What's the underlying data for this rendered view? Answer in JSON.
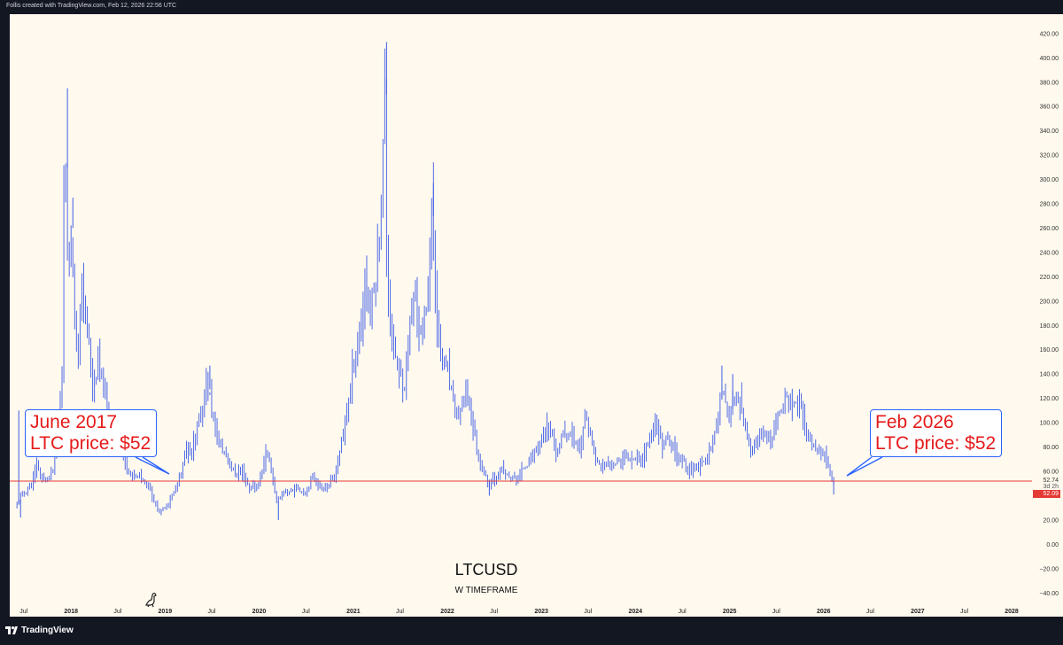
{
  "header": {
    "caption": "Follis created with TradingView.com, Feb 12, 2026 22:56 UTC"
  },
  "footer": {
    "brand": "TradingView"
  },
  "chart_data": {
    "type": "candlestick",
    "title": "LTCUSD",
    "subtitle": "W TIMEFRAME",
    "timeframe": "W",
    "ylim": [
      -50,
      425
    ],
    "y_ticks": [
      "420.00",
      "400.00",
      "380.00",
      "360.00",
      "340.00",
      "320.00",
      "300.00",
      "280.00",
      "260.00",
      "240.00",
      "220.00",
      "200.00",
      "180.00",
      "160.00",
      "140.00",
      "120.00",
      "100.00",
      "80.00",
      "60.00",
      "40.00",
      "20.00",
      "0.00",
      "−20.00",
      "−40.00"
    ],
    "x_ticks": [
      "Jul",
      "2018",
      "Jul",
      "2019",
      "Jul",
      "2020",
      "Jul",
      "2021",
      "Jul",
      "2022",
      "Jul",
      "2023",
      "Jul",
      "2024",
      "Jul",
      "2025",
      "Jul",
      "2026",
      "Jul",
      "2027",
      "Jul",
      "2028"
    ],
    "x_range": [
      "2017-05-08",
      "2028-03-20"
    ],
    "price_series": [
      [
        "2017-06-05",
        30
      ],
      [
        "2017-06-26",
        40
      ],
      [
        "2017-07-17",
        44
      ],
      [
        "2017-08-07",
        48
      ],
      [
        "2017-08-28",
        66
      ],
      [
        "2017-09-18",
        52
      ],
      [
        "2017-10-09",
        54
      ],
      [
        "2017-10-30",
        60
      ],
      [
        "2017-11-20",
        90
      ],
      [
        "2017-12-04",
        140
      ],
      [
        "2017-12-11",
        300
      ],
      [
        "2017-12-18",
        310
      ],
      [
        "2017-12-25",
        240
      ],
      [
        "2018-01-08",
        260
      ],
      [
        "2018-01-22",
        190
      ],
      [
        "2018-02-05",
        150
      ],
      [
        "2018-02-19",
        215
      ],
      [
        "2018-03-05",
        190
      ],
      [
        "2018-03-19",
        165
      ],
      [
        "2018-04-02",
        120
      ],
      [
        "2018-04-23",
        150
      ],
      [
        "2018-05-14",
        130
      ],
      [
        "2018-06-04",
        100
      ],
      [
        "2018-06-25",
        86
      ],
      [
        "2018-07-16",
        84
      ],
      [
        "2018-08-13",
        60
      ],
      [
        "2018-09-10",
        56
      ],
      [
        "2018-10-08",
        54
      ],
      [
        "2018-11-05",
        50
      ],
      [
        "2018-11-26",
        35
      ],
      [
        "2018-12-17",
        26
      ],
      [
        "2019-01-14",
        32
      ],
      [
        "2019-02-11",
        42
      ],
      [
        "2019-03-11",
        58
      ],
      [
        "2019-04-01",
        80
      ],
      [
        "2019-04-22",
        75
      ],
      [
        "2019-05-13",
        95
      ],
      [
        "2019-06-03",
        110
      ],
      [
        "2019-06-17",
        135
      ],
      [
        "2019-07-01",
        120
      ],
      [
        "2019-07-22",
        93
      ],
      [
        "2019-08-12",
        80
      ],
      [
        "2019-09-09",
        70
      ],
      [
        "2019-10-07",
        57
      ],
      [
        "2019-11-04",
        60
      ],
      [
        "2019-12-02",
        46
      ],
      [
        "2020-01-06",
        48
      ],
      [
        "2020-02-03",
        75
      ],
      [
        "2020-02-24",
        62
      ],
      [
        "2020-03-16",
        35
      ],
      [
        "2020-04-13",
        42
      ],
      [
        "2020-05-11",
        44
      ],
      [
        "2020-06-08",
        46
      ],
      [
        "2020-07-06",
        42
      ],
      [
        "2020-08-03",
        56
      ],
      [
        "2020-09-07",
        46
      ],
      [
        "2020-10-05",
        48
      ],
      [
        "2020-11-02",
        60
      ],
      [
        "2020-11-23",
        85
      ],
      [
        "2020-12-21",
        120
      ],
      [
        "2021-01-11",
        150
      ],
      [
        "2021-02-08",
        180
      ],
      [
        "2021-02-22",
        215
      ],
      [
        "2021-03-15",
        190
      ],
      [
        "2021-04-05",
        220
      ],
      [
        "2021-04-26",
        280
      ],
      [
        "2021-05-10",
        370
      ],
      [
        "2021-05-17",
        230
      ],
      [
        "2021-06-07",
        170
      ],
      [
        "2021-07-05",
        140
      ],
      [
        "2021-07-26",
        130
      ],
      [
        "2021-08-16",
        180
      ],
      [
        "2021-09-06",
        205
      ],
      [
        "2021-09-27",
        170
      ],
      [
        "2021-10-18",
        195
      ],
      [
        "2021-11-08",
        270
      ],
      [
        "2021-11-22",
        210
      ],
      [
        "2021-12-13",
        155
      ],
      [
        "2022-01-10",
        140
      ],
      [
        "2022-01-31",
        115
      ],
      [
        "2022-02-21",
        105
      ],
      [
        "2022-03-21",
        125
      ],
      [
        "2022-04-11",
        105
      ],
      [
        "2022-05-09",
        70
      ],
      [
        "2022-06-06",
        55
      ],
      [
        "2022-06-20",
        50
      ],
      [
        "2022-07-11",
        55
      ],
      [
        "2022-08-08",
        60
      ],
      [
        "2022-09-05",
        55
      ],
      [
        "2022-10-03",
        53
      ],
      [
        "2022-11-07",
        65
      ],
      [
        "2022-12-05",
        72
      ],
      [
        "2023-01-09",
        88
      ],
      [
        "2023-02-06",
        96
      ],
      [
        "2023-03-06",
        75
      ],
      [
        "2023-04-03",
        90
      ],
      [
        "2023-05-01",
        92
      ],
      [
        "2023-06-05",
        78
      ],
      [
        "2023-06-26",
        105
      ],
      [
        "2023-07-10",
        95
      ],
      [
        "2023-08-07",
        68
      ],
      [
        "2023-09-04",
        63
      ],
      [
        "2023-10-02",
        65
      ],
      [
        "2023-11-06",
        70
      ],
      [
        "2023-12-04",
        72
      ],
      [
        "2024-01-08",
        70
      ],
      [
        "2024-02-05",
        70
      ],
      [
        "2024-03-11",
        95
      ],
      [
        "2024-04-01",
        100
      ],
      [
        "2024-04-22",
        82
      ],
      [
        "2024-05-13",
        85
      ],
      [
        "2024-06-10",
        75
      ],
      [
        "2024-07-08",
        68
      ],
      [
        "2024-08-05",
        60
      ],
      [
        "2024-09-09",
        65
      ],
      [
        "2024-10-07",
        68
      ],
      [
        "2024-11-04",
        85
      ],
      [
        "2024-11-25",
        110
      ],
      [
        "2024-12-09",
        130
      ],
      [
        "2024-12-30",
        105
      ],
      [
        "2025-01-20",
        115
      ],
      [
        "2025-02-10",
        120
      ],
      [
        "2025-03-10",
        93
      ],
      [
        "2025-04-07",
        75
      ],
      [
        "2025-05-05",
        90
      ],
      [
        "2025-06-02",
        85
      ],
      [
        "2025-06-30",
        92
      ],
      [
        "2025-07-21",
        110
      ],
      [
        "2025-08-11",
        120
      ],
      [
        "2025-09-08",
        112
      ],
      [
        "2025-10-06",
        115
      ],
      [
        "2025-10-27",
        95
      ],
      [
        "2025-11-17",
        85
      ],
      [
        "2025-12-15",
        78
      ],
      [
        "2026-01-05",
        75
      ],
      [
        "2026-01-19",
        68
      ],
      [
        "2026-02-02",
        56
      ],
      [
        "2026-02-09",
        52
      ]
    ],
    "spikes": [
      [
        "2017-06-12",
        110
      ],
      [
        "2017-06-19",
        22
      ],
      [
        "2017-12-18",
        375
      ],
      [
        "2018-01-08",
        285
      ],
      [
        "2019-06-24",
        147
      ],
      [
        "2020-03-16",
        20
      ],
      [
        "2021-05-10",
        413
      ],
      [
        "2021-11-08",
        297
      ],
      [
        "2022-06-13",
        40
      ],
      [
        "2024-12-02",
        147
      ],
      [
        "2025-01-13",
        140
      ],
      [
        "2026-02-09",
        41
      ]
    ],
    "horizontal_line": {
      "value": 52,
      "color": "#e53935"
    },
    "price_labels": {
      "last": "52.74",
      "countdown": "3d 2h",
      "line": "52.09"
    },
    "annotations": [
      {
        "line1": "June 2017",
        "line2": "LTC price: $52"
      },
      {
        "line1": "Feb 2026",
        "line2": "LTC price: $52"
      }
    ],
    "colors": {
      "candles": "#3d5ce6",
      "background": "#fff9ee",
      "text": "#e61a1a"
    },
    "grid": false
  }
}
